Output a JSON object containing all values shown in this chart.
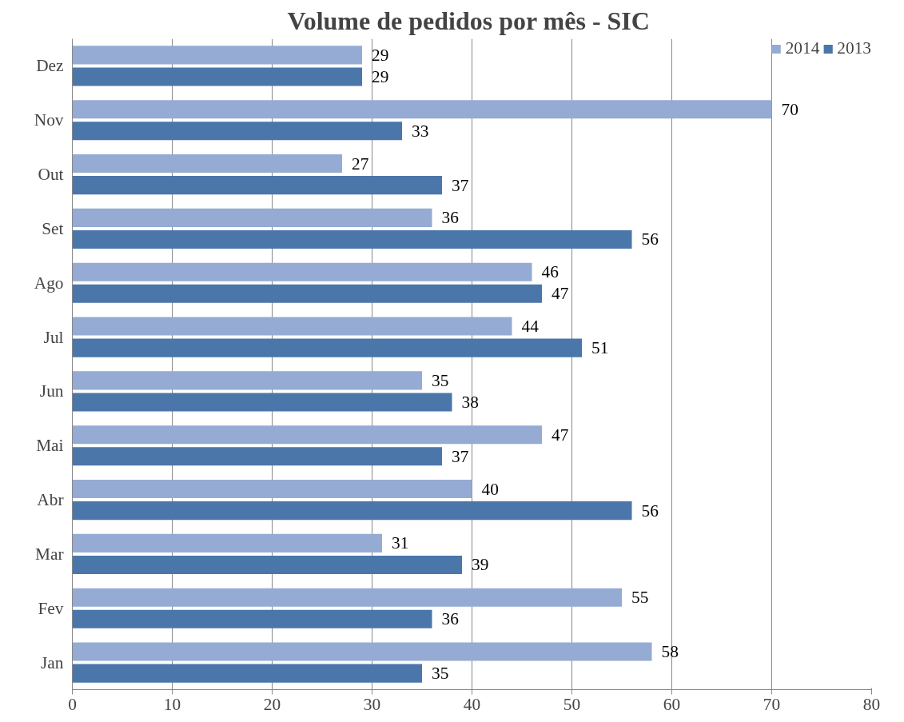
{
  "chart_data": {
    "type": "bar",
    "orientation": "horizontal",
    "title": "Volume de pedidos por mês  - SIC",
    "categories": [
      "Dez",
      "Nov",
      "Out",
      "Set",
      "Ago",
      "Jul",
      "Jun",
      "Mai",
      "Abr",
      "Mar",
      "Fev",
      "Jan"
    ],
    "series": [
      {
        "name": "2014",
        "color": "#95abd4",
        "values": [
          29,
          70,
          27,
          36,
          46,
          44,
          35,
          47,
          40,
          31,
          55,
          58
        ]
      },
      {
        "name": "2013",
        "color": "#4a76aa",
        "values": [
          29,
          33,
          37,
          56,
          47,
          51,
          38,
          37,
          56,
          39,
          36,
          35
        ]
      }
    ],
    "xlim": [
      0,
      80
    ],
    "xticks": [
      0,
      10,
      20,
      30,
      40,
      50,
      60,
      70,
      80
    ],
    "grid": "x",
    "legend": "top right",
    "data_labels": true
  }
}
